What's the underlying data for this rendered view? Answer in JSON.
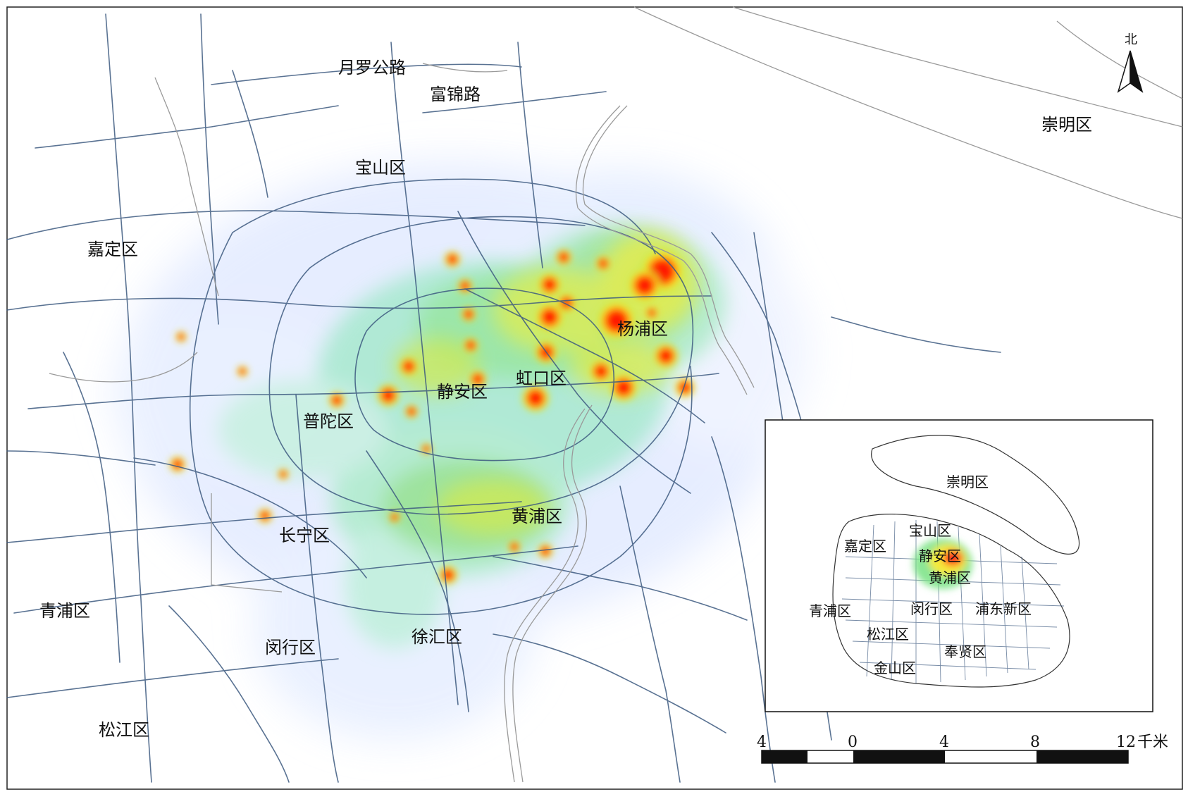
{
  "map": {
    "main_labels": [
      {
        "id": "yueluo",
        "text": "月罗公路"
      },
      {
        "id": "fujin",
        "text": "富锦路"
      },
      {
        "id": "chongming",
        "text": "崇明区"
      },
      {
        "id": "baoshan",
        "text": "宝山区"
      },
      {
        "id": "jiading",
        "text": "嘉定区"
      },
      {
        "id": "yangpu",
        "text": "杨浦区"
      },
      {
        "id": "hongkou",
        "text": "虹口区"
      },
      {
        "id": "jingan",
        "text": "静安区"
      },
      {
        "id": "putuo",
        "text": "普陀区"
      },
      {
        "id": "huangpu",
        "text": "黄浦区"
      },
      {
        "id": "changning",
        "text": "长宁区"
      },
      {
        "id": "qingpu",
        "text": "青浦区"
      },
      {
        "id": "minhang",
        "text": "闵行区"
      },
      {
        "id": "xuhui",
        "text": "徐汇区"
      },
      {
        "id": "songjiang",
        "text": "松江区"
      }
    ],
    "north_arrow": {
      "label": "北"
    },
    "inset_labels": [
      {
        "id": "inset-chongming",
        "text": "崇明区"
      },
      {
        "id": "inset-baoshan",
        "text": "宝山区"
      },
      {
        "id": "inset-jiading",
        "text": "嘉定区"
      },
      {
        "id": "inset-jingan",
        "text": "静安区"
      },
      {
        "id": "inset-huangpu",
        "text": "黄浦区"
      },
      {
        "id": "inset-qingpu",
        "text": "青浦区"
      },
      {
        "id": "inset-minhang",
        "text": "闵行区"
      },
      {
        "id": "inset-pudong",
        "text": "浦东新区"
      },
      {
        "id": "inset-songjiang",
        "text": "松江区"
      },
      {
        "id": "inset-fengxian",
        "text": "奉贤区"
      },
      {
        "id": "inset-jinshan",
        "text": "金山区"
      }
    ],
    "scale_bar": {
      "ticks": [
        "4",
        "0",
        "4",
        "8",
        "12"
      ],
      "unit": "千米"
    },
    "colors": {
      "roads": "#3d5a80",
      "river": "#9a9a9a",
      "heat_low": "#dfe8ff",
      "heat_mid": "#4cd964",
      "heat_high": "#ffeb3b",
      "heat_peak": "#ff1a1a"
    }
  }
}
